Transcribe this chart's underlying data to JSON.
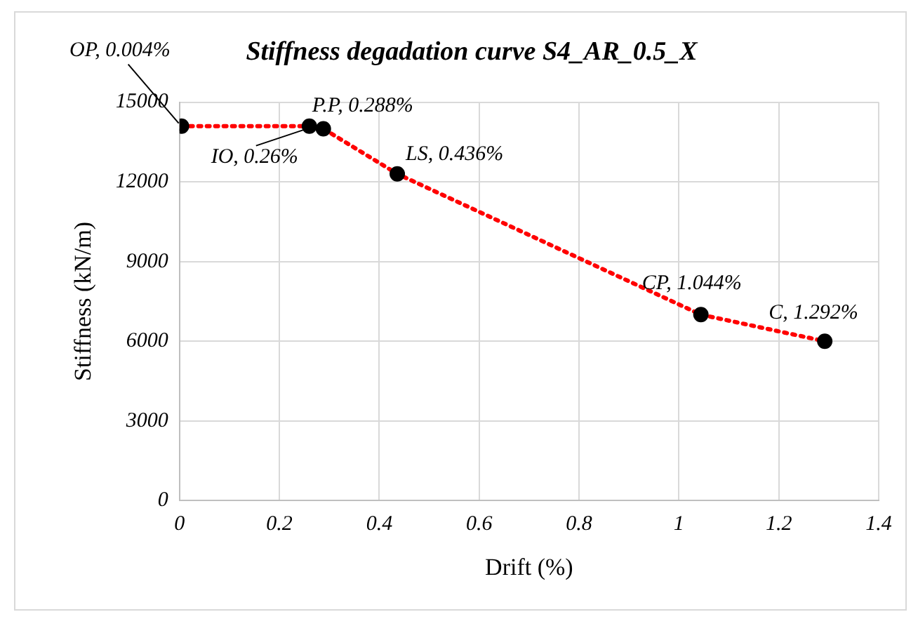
{
  "chart_data": {
    "type": "line",
    "title": "Stiffness degadation curve S4_AR_0.5_X",
    "xlabel": "Drift (%)",
    "ylabel": "Stiffness (kN/m)",
    "x": [
      0.004,
      0.26,
      0.288,
      0.436,
      1.044,
      1.292
    ],
    "series": [
      {
        "color": "#ff0000",
        "values": [
          14100,
          14100,
          14000,
          12300,
          7000,
          6000
        ]
      }
    ],
    "xlim": [
      0,
      1.4
    ],
    "xticks": [
      0,
      0.2,
      0.4,
      0.6,
      0.8,
      1,
      1.2,
      1.4
    ],
    "ylim": [
      0,
      15000
    ],
    "yticks": [
      0,
      3000,
      6000,
      9000,
      12000,
      15000
    ],
    "grid": true,
    "legend": false,
    "marker": "circle",
    "line_style": "dotted",
    "annotations": [
      {
        "text": "OP, 0.004%",
        "x": 0.004,
        "y": 14100
      },
      {
        "text": "IO, 0.26%",
        "x": 0.26,
        "y": 14100
      },
      {
        "text": "P.P, 0.288%",
        "x": 0.288,
        "y": 14000
      },
      {
        "text": "LS, 0.436%",
        "x": 0.436,
        "y": 12300
      },
      {
        "text": "CP, 1.044%",
        "x": 1.044,
        "y": 7000
      },
      {
        "text": "C, 1.292%",
        "x": 1.292,
        "y": 6000
      }
    ]
  }
}
